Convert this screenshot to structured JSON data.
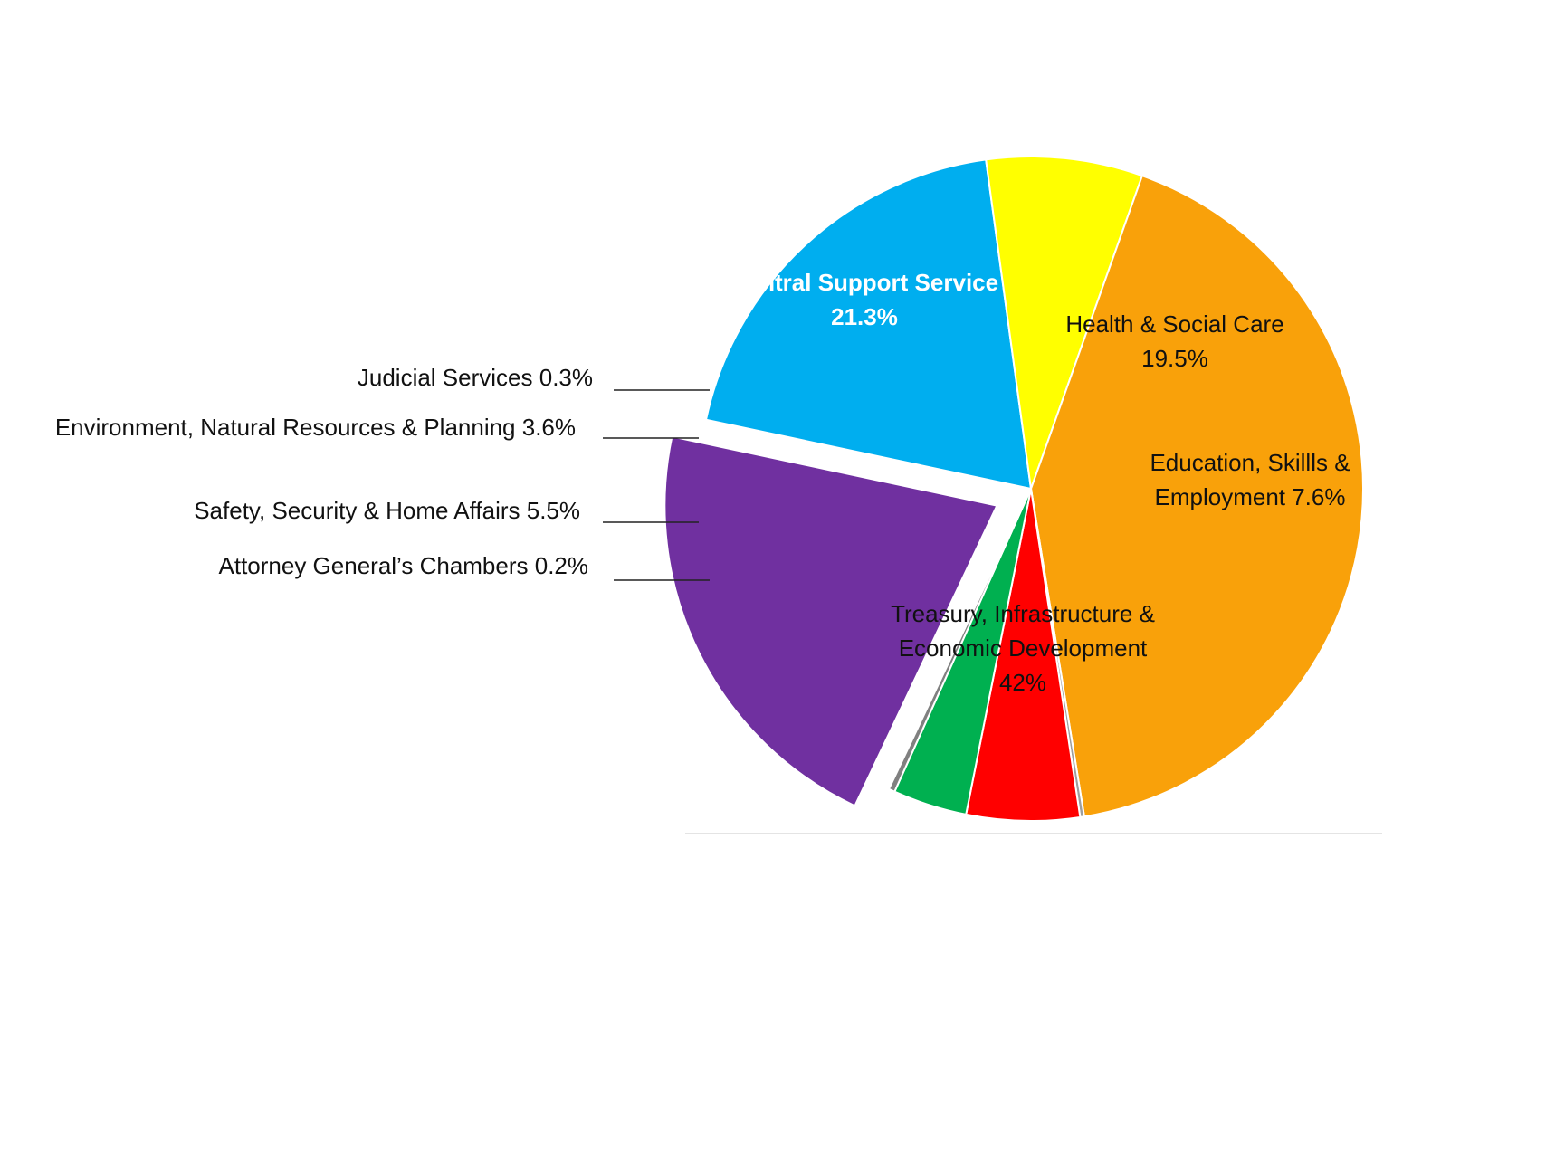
{
  "chart_data": {
    "type": "pie",
    "slices": [
      {
        "label": "Health & Social Care",
        "value": 19.5,
        "display": "19.5%",
        "color": "#00AEEF",
        "label_lines": [
          "Health & Social Care",
          "19.5%"
        ]
      },
      {
        "label": "Education, Skillls & Employment",
        "value": 7.6,
        "display": "7.6%",
        "color": "#FFFF00",
        "label_lines": [
          "Education, Skillls &",
          "Employment 7.6%"
        ]
      },
      {
        "label": "Treasury, Infrastructure & Economic Development",
        "value": 42,
        "display": "42%",
        "color": "#F9A10A",
        "label_lines": [
          "Treasury, Infrastructure &",
          "Economic Development",
          "42%"
        ]
      },
      {
        "label": "Attorney General’s Chambers",
        "value": 0.2,
        "display": "0.2%",
        "color": "#9E9E9E",
        "label_lines": [
          "Attorney General’s Chambers 0.2%"
        ]
      },
      {
        "label": "Safety, Security & Home Affairs",
        "value": 5.5,
        "display": "5.5%",
        "color": "#FF0000",
        "label_lines": [
          "Safety, Security & Home Affairs 5.5%"
        ]
      },
      {
        "label": "Environment, Natural Resources & Planning",
        "value": 3.6,
        "display": "3.6%",
        "color": "#00B050",
        "label_lines": [
          "Environment, Natural Resources & Planning 3.6%"
        ]
      },
      {
        "label": "Judicial Services",
        "value": 0.3,
        "display": "0.3%",
        "color": "#808080",
        "label_lines": [
          "Judicial Services 0.3%"
        ]
      },
      {
        "label": "Central Support Service",
        "value": 21.3,
        "display": "21.3%",
        "color": "#7030A0",
        "label_lines": [
          "Central Support Service",
          "21.3%"
        ],
        "exploded": true
      }
    ],
    "title": "",
    "legend": "none"
  }
}
